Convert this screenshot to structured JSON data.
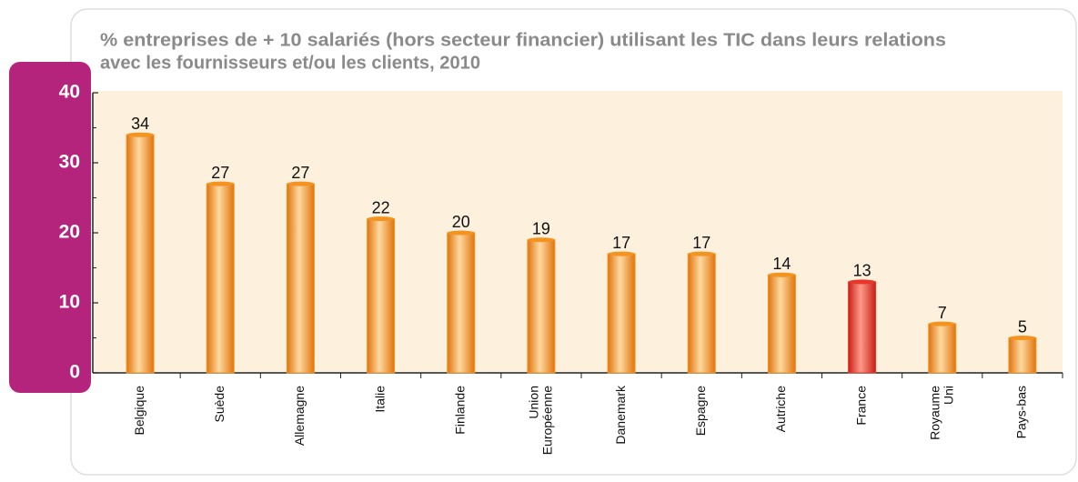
{
  "chart_data": {
    "type": "bar",
    "title": [
      "% entreprises de + 10 salariés (hors secteur financier) utilisant les TIC dans leurs relations",
      "avec les fournisseurs et/ou les clients, 2010"
    ],
    "categories": [
      "Belgique",
      "Suède",
      "Allemagne",
      "Italie",
      "Finlande",
      "Union Européenne",
      "Danemark",
      "Espagne",
      "Autriche",
      "France",
      "Royaume Uni",
      "Pays-bas"
    ],
    "values": [
      34,
      27,
      27,
      22,
      20,
      19,
      17,
      17,
      14,
      13,
      7,
      5
    ],
    "colors": [
      "#f39320",
      "#f39320",
      "#f39320",
      "#f39320",
      "#f39320",
      "#f39320",
      "#f39320",
      "#f39320",
      "#f39320",
      "#e8362c",
      "#f39320",
      "#f39320"
    ],
    "ylim": [
      0,
      40
    ],
    "yticks": [
      0,
      10,
      20,
      30,
      40
    ],
    "minor_yticks": [
      5,
      15,
      25,
      35
    ]
  }
}
